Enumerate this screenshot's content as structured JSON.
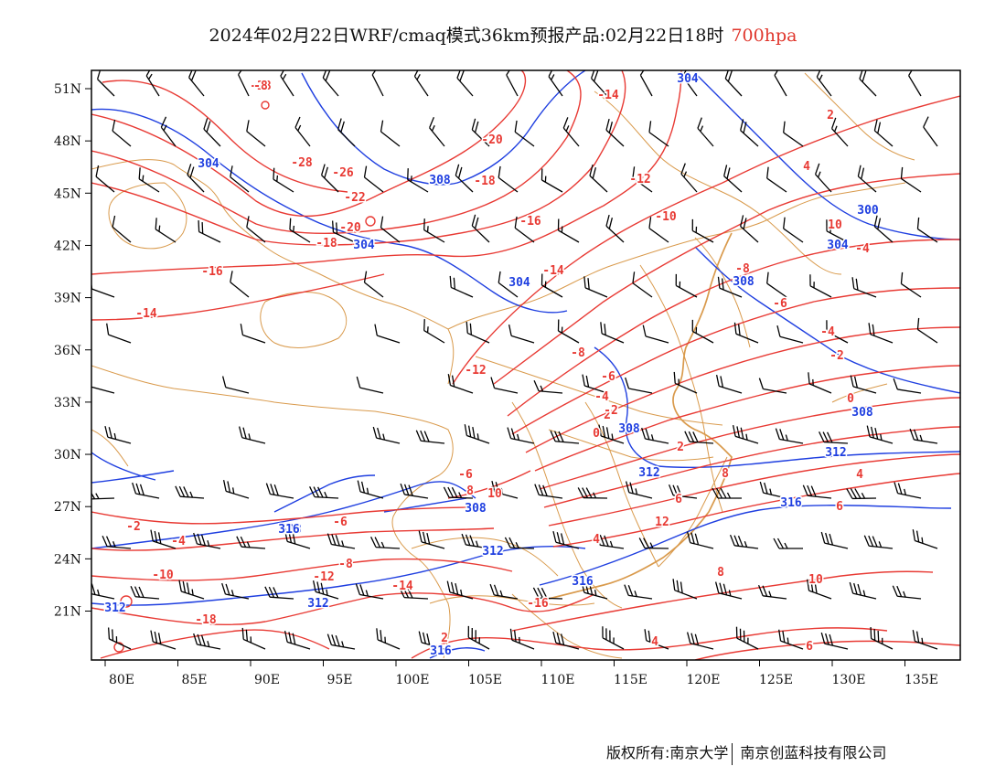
{
  "title": {
    "main": "2024年02月22日WRF/cmaq模式36km预报产品:02月22日18时",
    "level": "700hpa"
  },
  "colors": {
    "temperature": "#e83a34",
    "geopotential": "#1f3fe0",
    "boundary": "#d99a4c",
    "wind": "#000000",
    "frame": "#000000"
  },
  "icons": [
    "wind-barb-icon"
  ],
  "axes": {
    "lat_ticks": [
      "51N",
      "48N",
      "45N",
      "42N",
      "39N",
      "36N",
      "33N",
      "30N",
      "27N",
      "24N",
      "21N"
    ],
    "lon_ticks": [
      "80E",
      "85E",
      "90E",
      "95E",
      "100E",
      "105E",
      "110E",
      "115E",
      "120E",
      "125E",
      "130E",
      "135E"
    ]
  },
  "temp_labels": [
    "-28",
    "-28",
    "-26",
    "-22",
    "-20",
    "-18",
    "-16",
    "-14",
    "-20",
    "-18",
    "-16",
    "-14",
    "-14",
    "-12",
    "-10",
    "-8",
    "-6",
    "-4",
    "-2",
    "0",
    "2",
    "-12",
    "-8",
    "-6",
    "-4",
    "-2",
    "0",
    "2",
    "4",
    "6",
    "8",
    "10",
    "-2",
    "-4",
    "-6",
    "-8",
    "-10",
    "-12",
    "-14",
    "-16",
    "-18",
    "2",
    "4",
    "6",
    "8",
    "10",
    "12",
    "4",
    "6",
    "8",
    "10",
    "4",
    "2",
    "-4",
    "-6",
    "-8"
  ],
  "geo_labels": [
    "304",
    "304",
    "308",
    "304",
    "304",
    "308",
    "300",
    "304",
    "308",
    "308",
    "312",
    "312",
    "316",
    "308",
    "312",
    "316",
    "308",
    "312",
    "312",
    "316",
    "316"
  ],
  "footer": {
    "left": "版权所有:南京大学",
    "right": "南京创蓝科技有限公司"
  }
}
